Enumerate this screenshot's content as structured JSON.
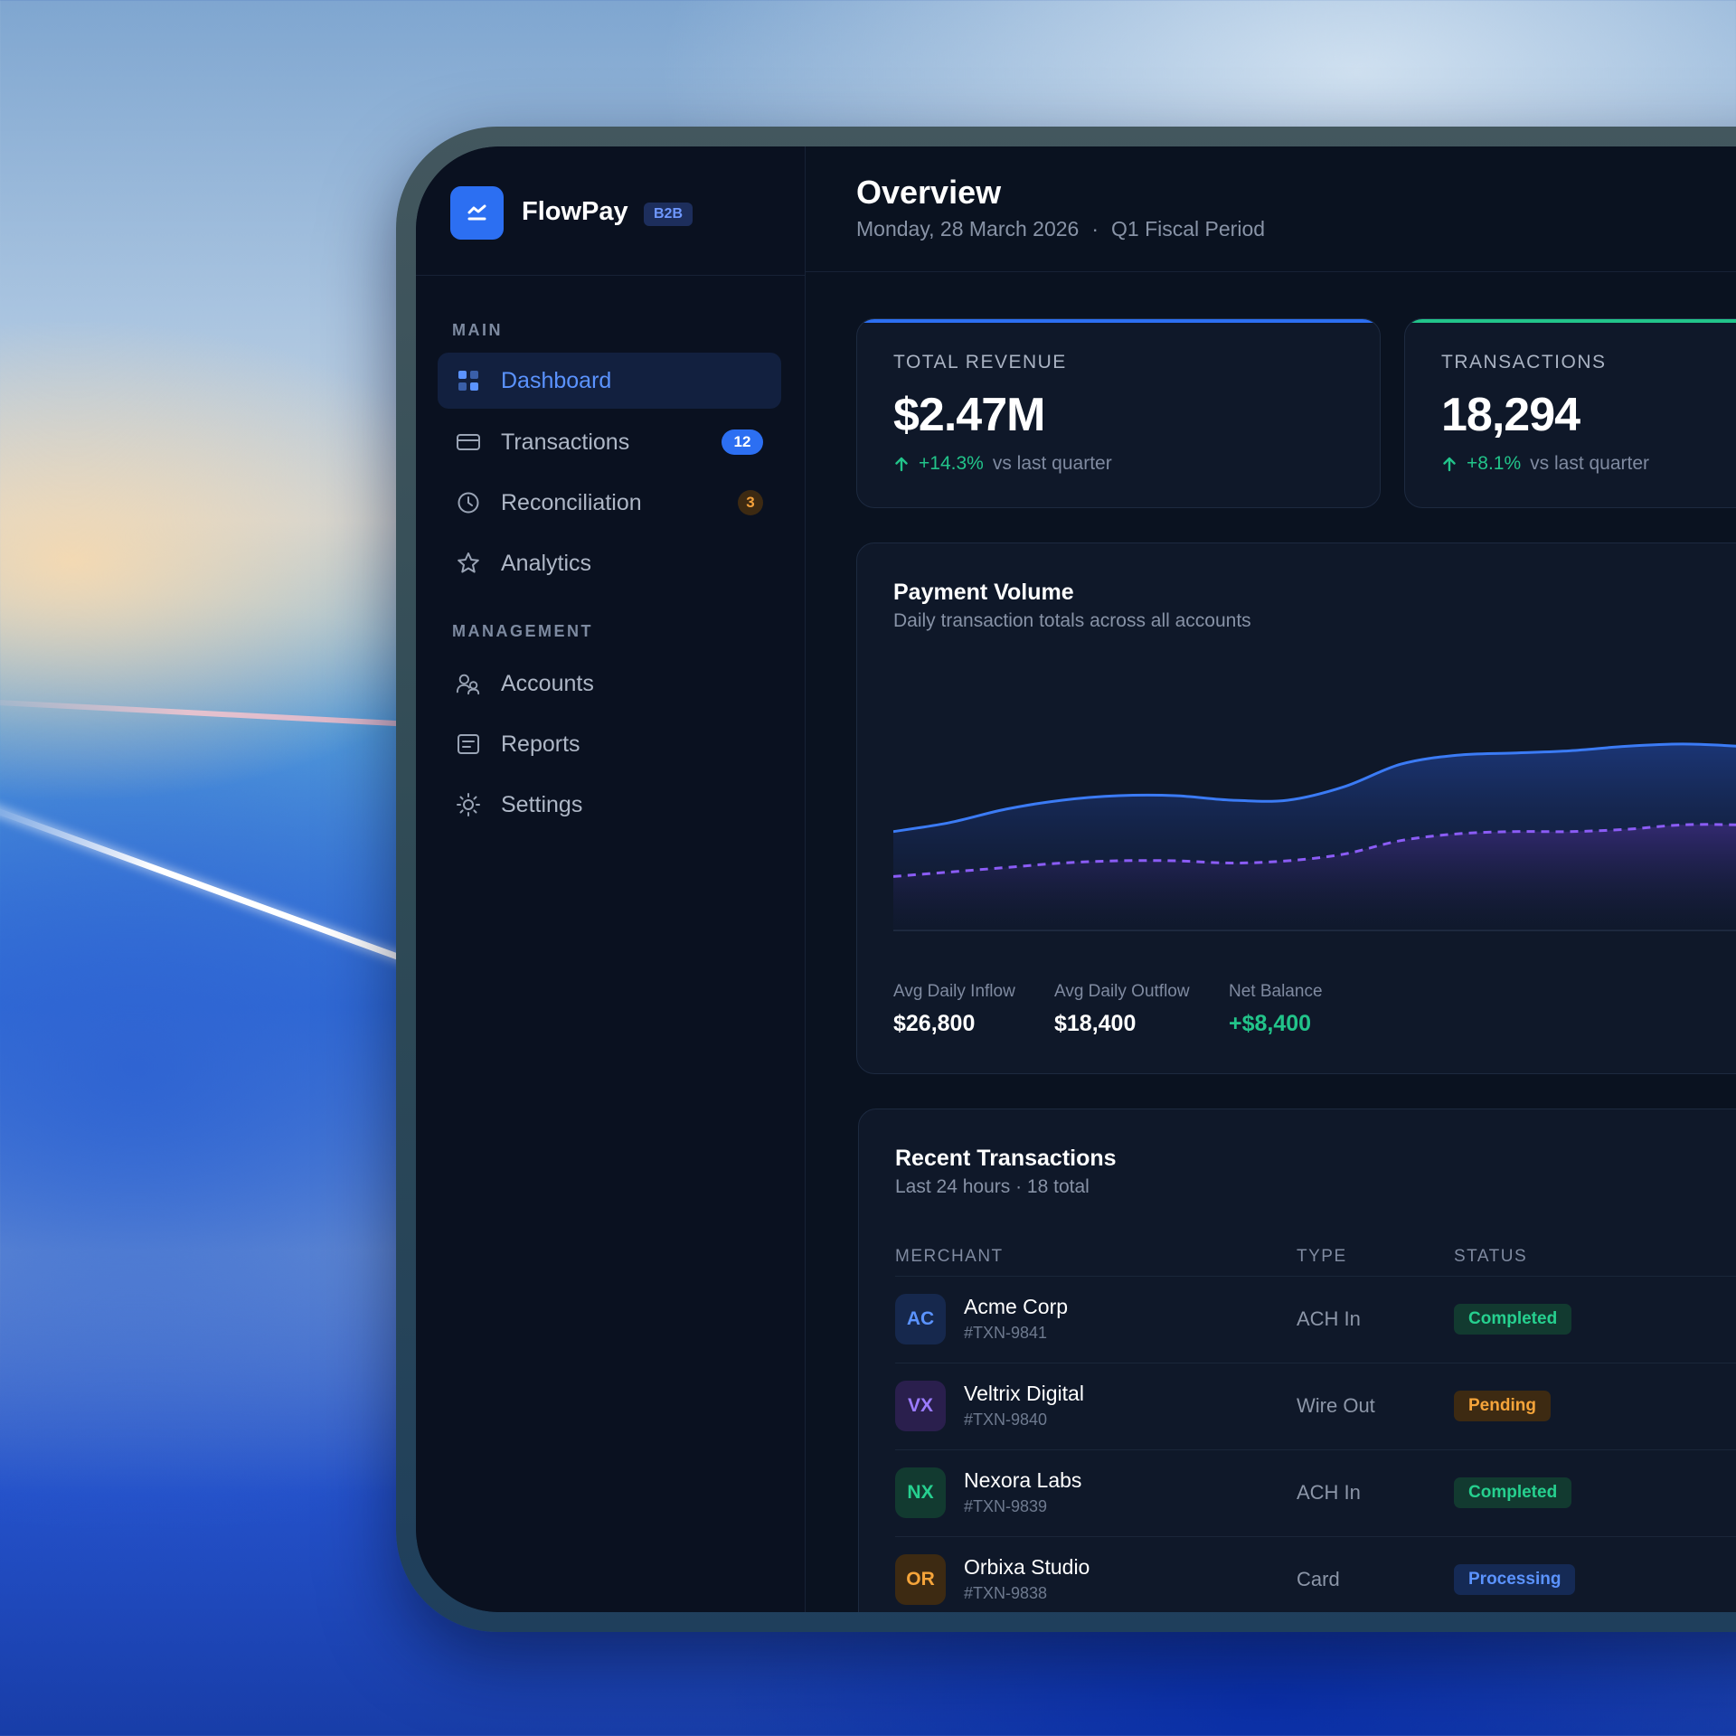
{
  "brand": {
    "name": "FlowPay",
    "tag": "B2B"
  },
  "sidebar": {
    "main_label": "MAIN",
    "management_label": "MANAGEMENT",
    "items": [
      {
        "label": "Dashboard",
        "icon": "grid-icon",
        "active": true
      },
      {
        "label": "Transactions",
        "icon": "card-icon",
        "badge": "12"
      },
      {
        "label": "Reconciliation",
        "icon": "clock-icon",
        "badge": "3"
      },
      {
        "label": "Analytics",
        "icon": "star-icon"
      },
      {
        "label": "Accounts",
        "icon": "users-icon"
      },
      {
        "label": "Reports",
        "icon": "report-icon"
      },
      {
        "label": "Settings",
        "icon": "gear-icon"
      }
    ]
  },
  "header": {
    "title": "Overview",
    "date": "Monday, 28 March 2026",
    "separator": "·",
    "period": "Q1 Fiscal Period"
  },
  "stats": [
    {
      "label": "TOTAL REVENUE",
      "value": "$2.47M",
      "delta": "+14.3%",
      "vs": "vs last quarter",
      "accent": "#2c6ff2"
    },
    {
      "label": "TRANSACTIONS",
      "value": "18,294",
      "delta": "+8.1%",
      "vs": "vs last quarter",
      "accent": "#22c48a"
    }
  ],
  "payment_volume": {
    "title": "Payment Volume",
    "subtitle": "Daily transaction totals across all accounts",
    "metrics": [
      {
        "label": "Avg Daily Inflow",
        "value": "$26,800"
      },
      {
        "label": "Avg Daily Outflow",
        "value": "$18,400"
      },
      {
        "label": "Net Balance",
        "value": "+$8,400"
      }
    ]
  },
  "chart_data": {
    "type": "area",
    "title": "Payment Volume",
    "x": [
      1,
      2,
      3,
      4,
      5,
      6,
      7,
      8,
      9,
      10,
      11,
      12,
      13,
      14,
      15,
      16,
      17,
      18
    ],
    "series": [
      {
        "values": [
          22,
          24,
          27,
          29,
          30,
          30,
          29,
          29,
          32,
          37,
          39,
          39.5,
          40,
          41,
          41.5,
          41,
          40,
          39.5
        ],
        "color": "#3b7bf5",
        "style": "solid"
      },
      {
        "values": [
          12,
          13,
          14,
          15,
          15.5,
          15.5,
          15,
          15.5,
          17,
          20,
          21.5,
          22,
          22,
          22.5,
          23.5,
          23.5,
          23,
          22.5
        ],
        "color": "#8b5cf6",
        "style": "dashed"
      }
    ],
    "ylim": [
      0,
      60
    ],
    "grid": false
  },
  "transactions": {
    "title": "Recent Transactions",
    "subtitle": "Last 24 hours · 18 total",
    "columns": [
      "MERCHANT",
      "TYPE",
      "STATUS"
    ],
    "rows": [
      {
        "initials": "AC",
        "merchant": "Acme Corp",
        "id": "#TXN-9841",
        "type": "ACH In",
        "status": "Completed",
        "status_kind": "completed",
        "avatar_bg": "#16284d",
        "avatar_fg": "#5b93ff"
      },
      {
        "initials": "VX",
        "merchant": "Veltrix Digital",
        "id": "#TXN-9840",
        "type": "Wire Out",
        "status": "Pending",
        "status_kind": "pending",
        "avatar_bg": "#2a1f4d",
        "avatar_fg": "#9b7bff"
      },
      {
        "initials": "NX",
        "merchant": "Nexora Labs",
        "id": "#TXN-9839",
        "type": "ACH In",
        "status": "Completed",
        "status_kind": "completed",
        "avatar_bg": "#123a30",
        "avatar_fg": "#26d08f"
      },
      {
        "initials": "OR",
        "merchant": "Orbixa Studio",
        "id": "#TXN-9838",
        "type": "Card",
        "status": "Processing",
        "status_kind": "processing",
        "avatar_bg": "#3d2a12",
        "avatar_fg": "#f5a43a"
      }
    ]
  }
}
